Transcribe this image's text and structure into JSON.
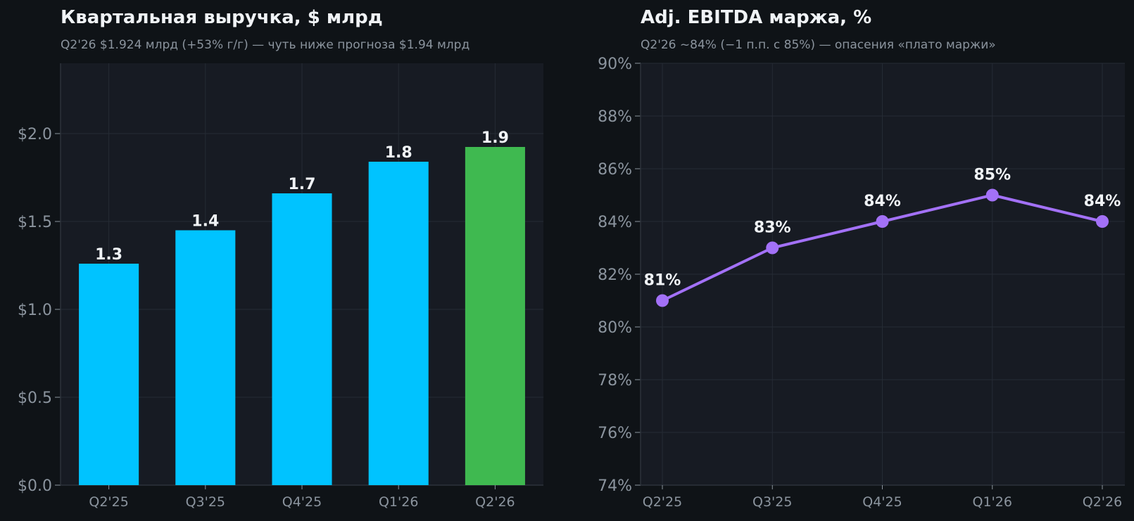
{
  "theme": {
    "page_bg": "#0f1317",
    "plot_bg": "#171b23",
    "grid": "#252b34",
    "axis": "#2d333b",
    "text": "#f0f3f6",
    "muted": "#8b949e"
  },
  "chart_data": [
    {
      "type": "bar",
      "title": "Квартальная выручка, $ млрд",
      "subtitle": "Q2'26 $1.924 млрд (+53% г/г) — чуть ниже прогноза $1.94 млрд",
      "xlabel": "",
      "ylabel": "",
      "categories": [
        "Q2'25",
        "Q3'25",
        "Q4'25",
        "Q1'26",
        "Q2'26"
      ],
      "values": [
        1.26,
        1.45,
        1.66,
        1.84,
        1.924
      ],
      "data_labels": [
        "1.3",
        "1.4",
        "1.7",
        "1.8",
        "1.9"
      ],
      "colors": [
        "#00c3ff",
        "#00c3ff",
        "#00c3ff",
        "#00c3ff",
        "#3fb950"
      ],
      "ylim": [
        0,
        2.4
      ],
      "y_ticks": [
        0,
        0.5,
        1.0,
        1.5,
        2.0
      ],
      "y_tick_labels": [
        "$0.0",
        "$0.5",
        "$1.0",
        "$1.5",
        "$2.0"
      ],
      "grid": true
    },
    {
      "type": "line",
      "title": "Adj. EBITDA маржа, %",
      "subtitle": "Q2'26 ~84% (−1 п.п. с 85%) — опасения «плато маржи»",
      "xlabel": "",
      "ylabel": "",
      "categories": [
        "Q2'25",
        "Q3'25",
        "Q4'25",
        "Q1'26",
        "Q2'26"
      ],
      "values": [
        81,
        83,
        84,
        85,
        84
      ],
      "data_labels": [
        "81%",
        "83%",
        "84%",
        "85%",
        "84%"
      ],
      "color": "#a371f7",
      "ylim": [
        74,
        90
      ],
      "y_ticks": [
        74,
        76,
        78,
        80,
        82,
        84,
        86,
        88,
        90
      ],
      "y_tick_labels": [
        "74%",
        "76%",
        "78%",
        "80%",
        "82%",
        "84%",
        "86%",
        "88%",
        "90%"
      ],
      "grid": true
    }
  ]
}
